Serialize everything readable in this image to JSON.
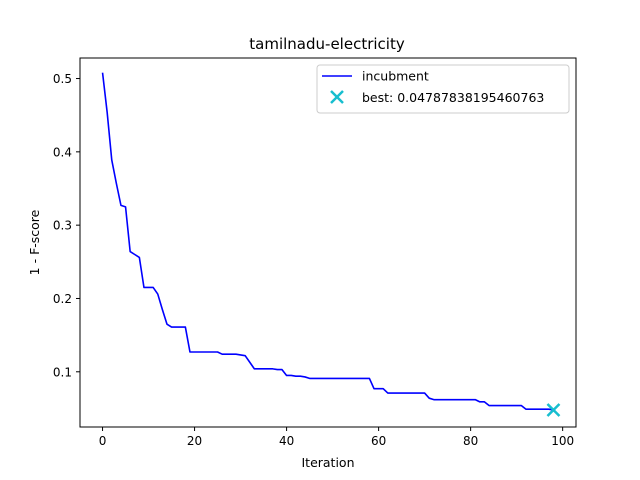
{
  "chart_data": {
    "type": "line",
    "title": "tamilnadu-electricity",
    "xlabel": "Iteration",
    "ylabel": "1 - F-score",
    "xlim": [
      -4.9,
      102.9
    ],
    "ylim": [
      0.0247,
      0.528
    ],
    "xticks": [
      0,
      20,
      40,
      60,
      80,
      100
    ],
    "yticks": [
      0.1,
      0.2,
      0.3,
      0.4,
      0.5
    ],
    "xtick_labels": [
      "0",
      "20",
      "40",
      "60",
      "80",
      "100"
    ],
    "ytick_labels": [
      "0.1",
      "0.2",
      "0.3",
      "0.4",
      "0.5"
    ],
    "legend_position": "top-right",
    "grid": false,
    "series": [
      {
        "name": "incubment",
        "color": "#0000ff",
        "x": [
          0,
          1,
          2,
          3,
          4,
          5,
          6,
          7,
          8,
          9,
          10,
          11,
          12,
          13,
          14,
          15,
          16,
          17,
          18,
          19,
          20,
          21,
          22,
          23,
          24,
          25,
          26,
          27,
          28,
          29,
          30,
          31,
          32,
          33,
          34,
          35,
          36,
          37,
          38,
          39,
          40,
          41,
          42,
          43,
          44,
          45,
          46,
          47,
          48,
          49,
          50,
          51,
          52,
          53,
          54,
          55,
          56,
          57,
          58,
          59,
          60,
          61,
          62,
          63,
          64,
          65,
          66,
          67,
          68,
          69,
          70,
          71,
          72,
          73,
          74,
          75,
          76,
          77,
          78,
          79,
          80,
          81,
          82,
          83,
          84,
          85,
          86,
          87,
          88,
          89,
          90,
          91,
          92,
          93,
          94,
          95,
          96,
          97,
          98
        ],
        "y": [
          0.508,
          0.454,
          0.389,
          0.357,
          0.327,
          0.325,
          0.264,
          0.26,
          0.256,
          0.215,
          0.215,
          0.215,
          0.206,
          0.185,
          0.165,
          0.161,
          0.161,
          0.161,
          0.161,
          0.127,
          0.127,
          0.127,
          0.127,
          0.127,
          0.127,
          0.127,
          0.124,
          0.124,
          0.124,
          0.124,
          0.123,
          0.122,
          0.113,
          0.104,
          0.104,
          0.104,
          0.104,
          0.104,
          0.103,
          0.103,
          0.095,
          0.095,
          0.094,
          0.094,
          0.093,
          0.091,
          0.091,
          0.091,
          0.091,
          0.091,
          0.091,
          0.091,
          0.091,
          0.091,
          0.091,
          0.091,
          0.091,
          0.091,
          0.091,
          0.077,
          0.077,
          0.077,
          0.071,
          0.071,
          0.071,
          0.071,
          0.071,
          0.071,
          0.071,
          0.071,
          0.071,
          0.064,
          0.062,
          0.062,
          0.062,
          0.062,
          0.062,
          0.062,
          0.062,
          0.062,
          0.062,
          0.062,
          0.059,
          0.059,
          0.054,
          0.054,
          0.054,
          0.054,
          0.054,
          0.054,
          0.054,
          0.054,
          0.049,
          0.049,
          0.049,
          0.049,
          0.049,
          0.049,
          0.048
        ]
      }
    ],
    "best": {
      "label": "best: 0.04787838195460763",
      "x": 98,
      "y": 0.04787838195460763,
      "color": "#17becf",
      "marker": "x"
    }
  }
}
